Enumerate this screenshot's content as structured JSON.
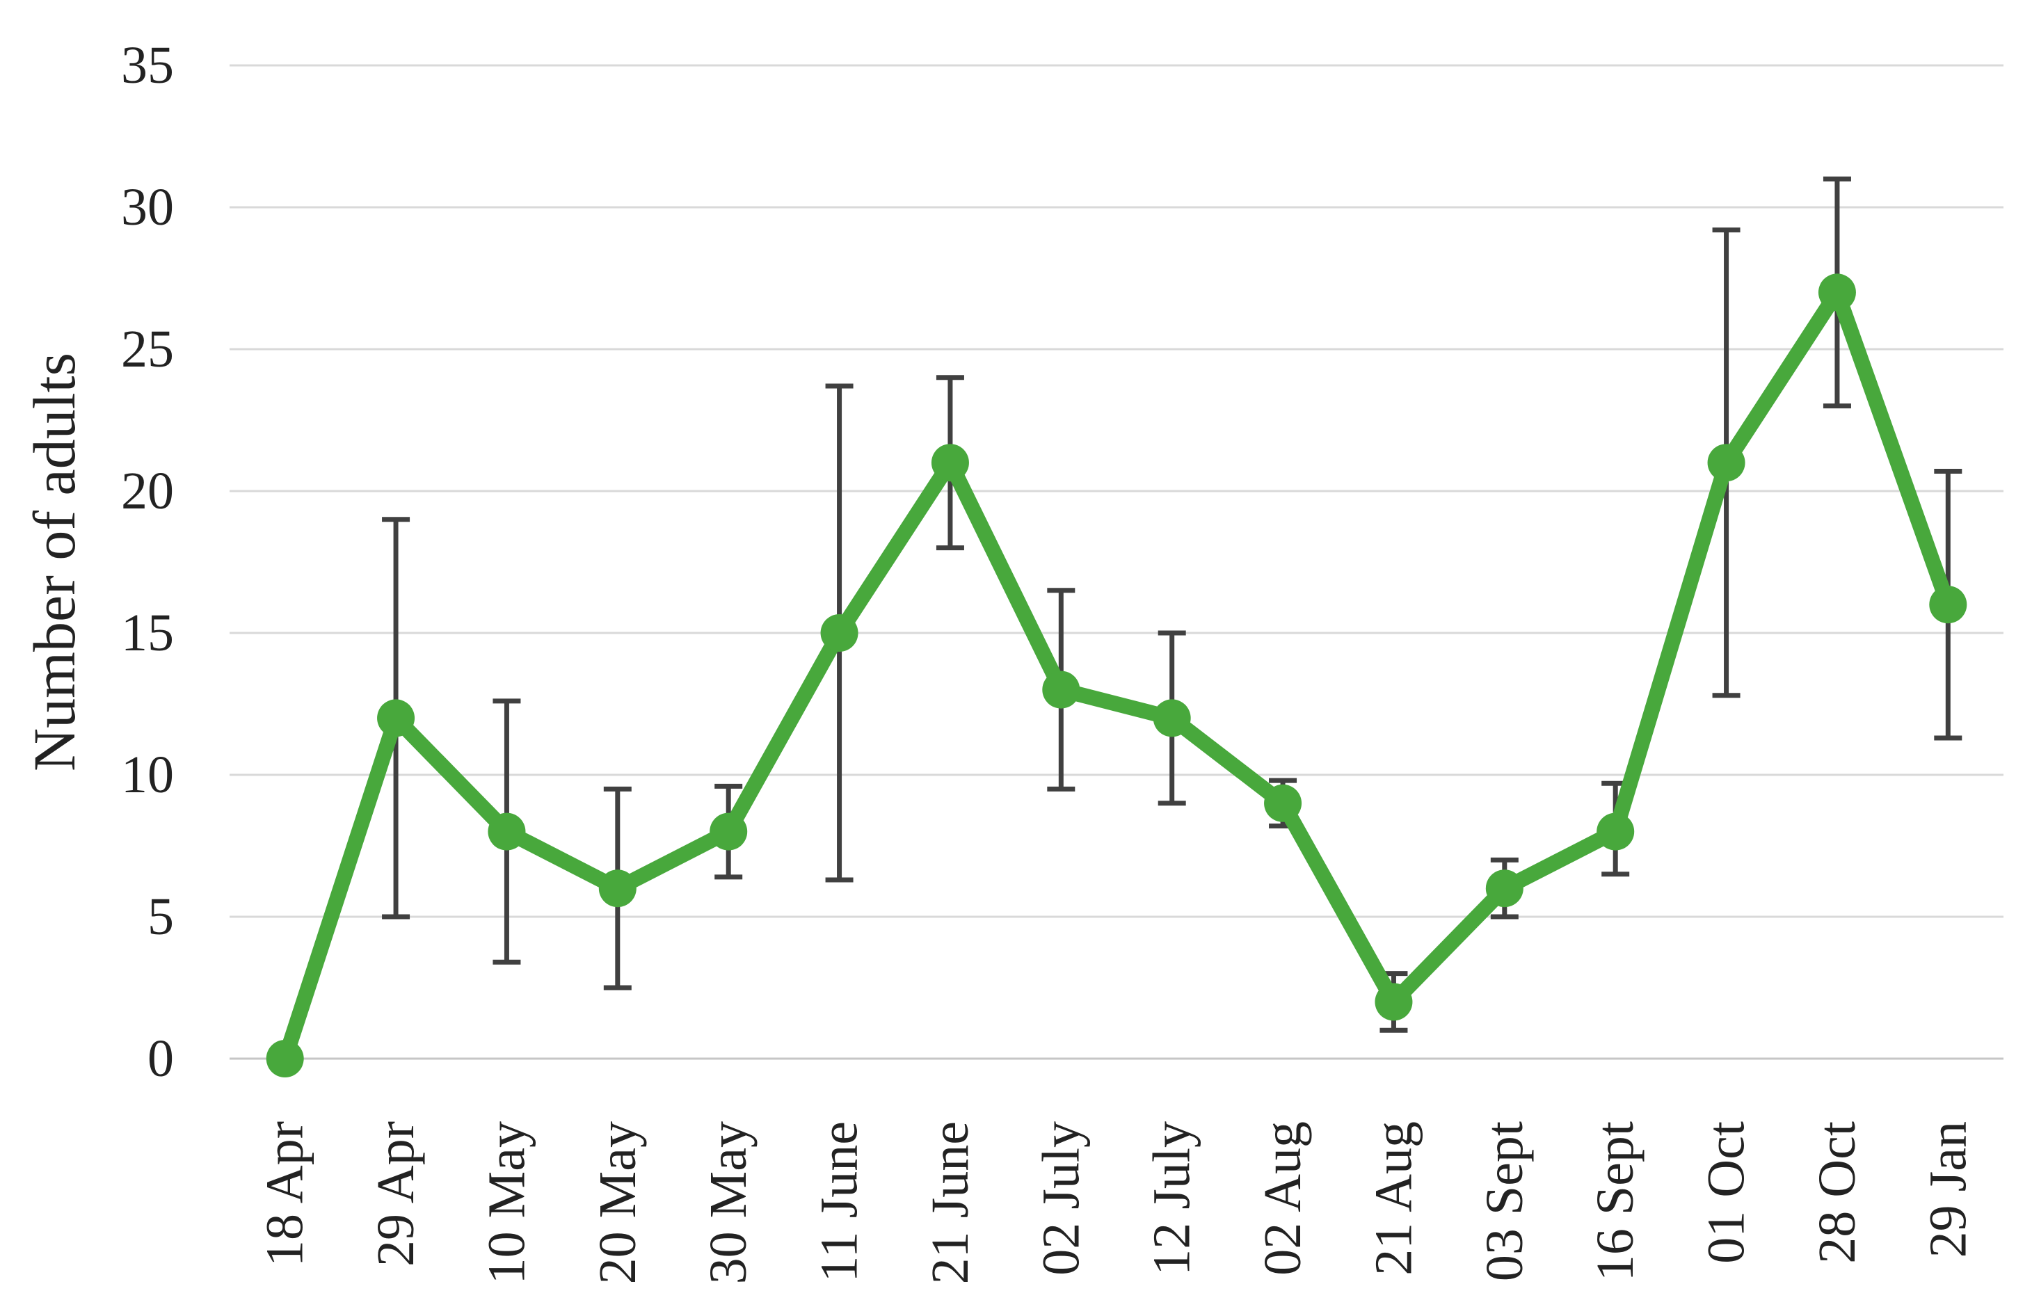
{
  "figure": {
    "background": "#FFFFFF"
  },
  "chart_data": {
    "type": "line",
    "title": "",
    "xlabel": "",
    "ylabel": "Number of adults",
    "categories": [
      "18 Apr",
      "29 Apr",
      "10 May",
      "20 May",
      "30 May",
      "11 June",
      "21 June",
      "02 July",
      "12 July",
      "02 Aug",
      "21 Aug",
      "03 Sept",
      "16 Sept",
      "01 Oct",
      "28 Oct",
      "29 Jan"
    ],
    "series": [
      {
        "name": "Number of adults",
        "values": [
          0,
          12,
          8,
          6,
          8,
          15,
          21,
          13,
          12,
          9,
          2,
          6,
          8,
          21,
          27,
          16
        ],
        "error_low": [
          null,
          5,
          3.4,
          2.5,
          6.4,
          6.3,
          18,
          9.5,
          9,
          8.2,
          1,
          5,
          6.5,
          12.8,
          23,
          11.3
        ],
        "error_high": [
          null,
          19,
          12.6,
          9.5,
          9.6,
          23.7,
          24,
          16.5,
          15,
          9.8,
          3,
          7,
          9.7,
          29.2,
          31,
          20.7
        ]
      }
    ],
    "ylim": [
      0,
      35
    ],
    "yticks": [
      0,
      5,
      10,
      15,
      20,
      25,
      30,
      35
    ],
    "ytick_interval": 5,
    "grid": "horizontal",
    "legend": "none",
    "x_labels_rotation_deg": 90,
    "colors": {
      "line": "#48A83C",
      "marker": "#48A83C",
      "error_bar": "#404040",
      "gridline": "#D9D9D9",
      "axis_line": "#C6C6C6",
      "text": "#222222"
    }
  }
}
